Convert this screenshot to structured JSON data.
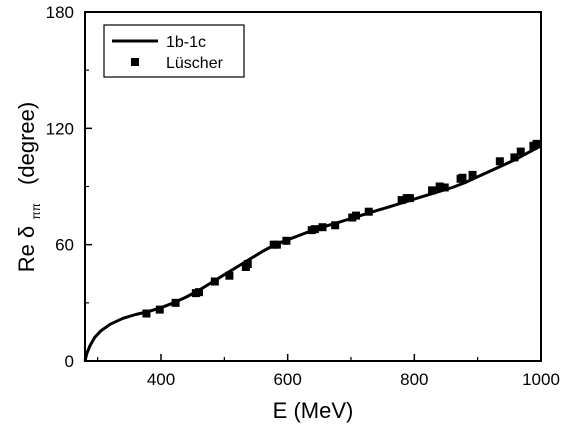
{
  "chart_data": {
    "type": "line",
    "xlabel": "E (MeV)",
    "ylabel_main": "Re δ",
    "ylabel_sub": "ππ",
    "ylabel_unit": "(degree)",
    "xlim": [
      280,
      1000
    ],
    "ylim": [
      0,
      180
    ],
    "x_ticks": [
      400,
      600,
      800,
      1000
    ],
    "y_ticks": [
      0,
      60,
      120,
      180
    ],
    "grid": false,
    "legend_position": "top-left",
    "series": [
      {
        "name": "1b-1c",
        "kind": "line",
        "color": "#000000",
        "x": [
          280,
          283,
          288,
          295,
          305,
          320,
          340,
          360,
          380,
          400,
          420,
          440,
          460,
          480,
          500,
          520,
          540,
          560,
          580,
          600,
          620,
          640,
          660,
          680,
          700,
          720,
          740,
          760,
          780,
          800,
          820,
          840,
          860,
          880,
          900,
          920,
          940,
          960,
          980,
          1000
        ],
        "y": [
          0,
          4,
          8,
          12,
          15.5,
          19,
          22,
          24,
          25.5,
          27.5,
          30,
          33,
          36.5,
          40.5,
          44.5,
          48.5,
          52.5,
          56.5,
          60,
          62.5,
          65,
          67.5,
          69.5,
          71.5,
          73.5,
          75.5,
          77.5,
          79.5,
          81.5,
          83.5,
          85.5,
          87.5,
          89.5,
          92,
          95,
          98,
          101,
          104,
          107.5,
          111
        ]
      },
      {
        "name": "Lüscher",
        "kind": "scatter",
        "color": "#000000",
        "x": [
          377,
          398,
          423,
          455,
          460,
          485,
          508,
          534,
          537,
          578,
          583,
          598,
          638,
          643,
          655,
          675,
          702,
          708,
          728,
          780,
          788,
          793,
          828,
          840,
          848,
          873,
          876,
          892,
          935,
          958,
          968,
          988,
          993
        ],
        "y": [
          24.5,
          26.5,
          30,
          35,
          35.5,
          41,
          44,
          48.5,
          50,
          60,
          60,
          62,
          67.5,
          68,
          69,
          70,
          74,
          75,
          77,
          83,
          84,
          84,
          88,
          90,
          89.5,
          94,
          94.5,
          96,
          103,
          105,
          108,
          111,
          112
        ]
      }
    ]
  }
}
